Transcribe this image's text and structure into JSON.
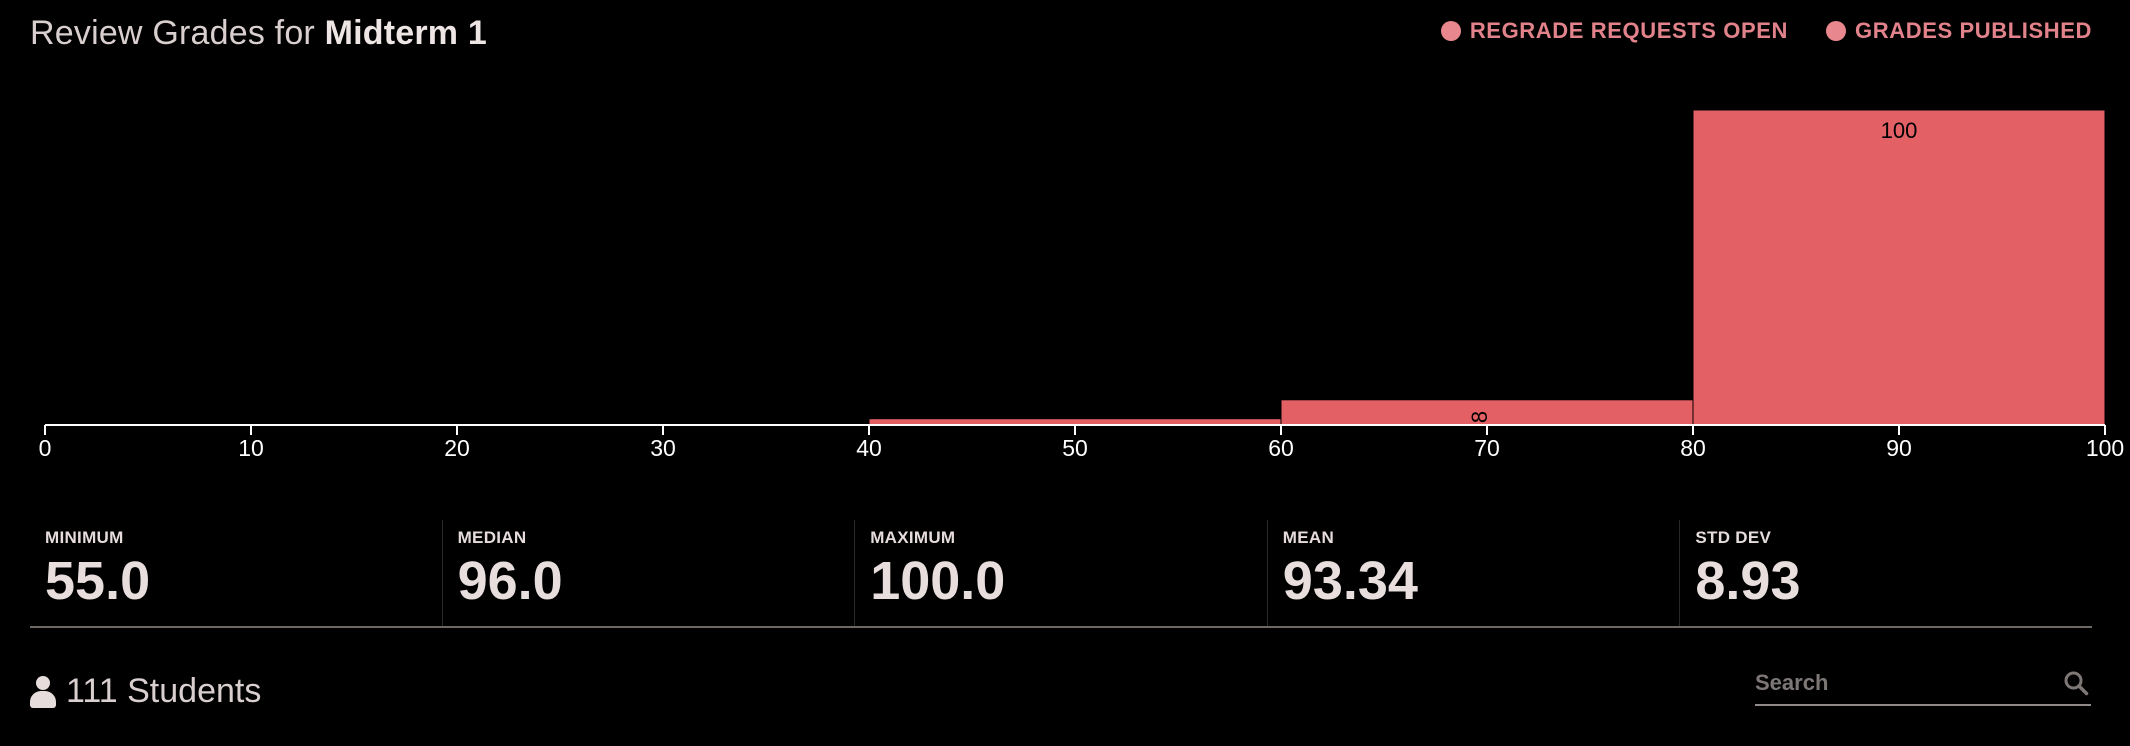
{
  "header": {
    "prefix": "Review Grades for",
    "exam_name": "Midterm 1"
  },
  "statuses": [
    {
      "label": "REGRADE REQUESTS OPEN",
      "icon": "status-dot-icon"
    },
    {
      "label": "GRADES PUBLISHED",
      "icon": "status-dot-icon"
    }
  ],
  "colors": {
    "bar": "#e36064",
    "status": "#e2828a",
    "axis": "#ffffff",
    "background": "#000000"
  },
  "chart_data": {
    "type": "bar",
    "bins": [
      {
        "start": 40,
        "end": 60,
        "percent": 2,
        "label": ""
      },
      {
        "start": 60,
        "end": 80,
        "percent": 8,
        "label": "8"
      },
      {
        "start": 80,
        "end": 100,
        "percent": 100,
        "label": "100"
      }
    ],
    "xlim": [
      0,
      100
    ],
    "ylim": [
      0,
      100
    ],
    "ticks": [
      "0",
      "10",
      "20",
      "30",
      "40",
      "50",
      "60",
      "70",
      "80",
      "90",
      "100"
    ]
  },
  "stats": [
    {
      "label": "MINIMUM",
      "value": "55.0"
    },
    {
      "label": "MEDIAN",
      "value": "96.0"
    },
    {
      "label": "MAXIMUM",
      "value": "100.0"
    },
    {
      "label": "MEAN",
      "value": "93.34"
    },
    {
      "label": "STD DEV",
      "value": "8.93"
    }
  ],
  "footer": {
    "students_label": "111 Students",
    "search_placeholder": "Search"
  }
}
